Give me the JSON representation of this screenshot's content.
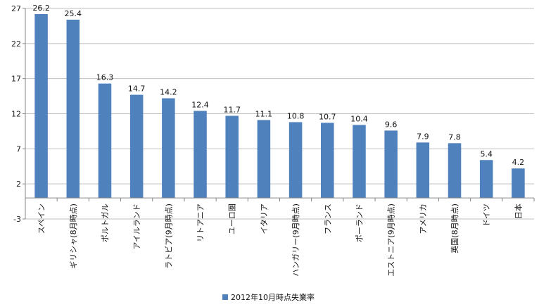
{
  "chart_data": {
    "type": "bar",
    "categories": [
      "スペイン",
      "ギリシャ(8月時点)",
      "ポルトガル",
      "アイルランド",
      "ラトビア(9月時点)",
      "リトアニア",
      "ユーロ圏",
      "イタリア",
      "ハンガリー(9月時点)",
      "フランス",
      "ポーランド",
      "エストニア(9月時点)",
      "アメリカ",
      "英国(8月時点)",
      "ドイツ",
      "日本"
    ],
    "series": [
      {
        "name": "2012年10月時点失業率",
        "values": [
          26.2,
          25.4,
          16.3,
          14.7,
          14.2,
          12.4,
          11.7,
          11.1,
          10.8,
          10.7,
          10.4,
          9.6,
          7.9,
          7.8,
          5.4,
          4.2
        ],
        "labels": [
          "26.2",
          "25.4",
          "16.3",
          "14.7",
          "14.2",
          "12.4",
          "11.7",
          "11.1",
          "10.8",
          "10.7",
          "10.4",
          "9.6",
          "7.9",
          "7.8",
          "5.4",
          "4.2"
        ]
      }
    ],
    "yticks": [
      -3,
      2,
      7,
      12,
      17,
      22,
      27
    ],
    "ytick_labels": [
      "-3",
      "2",
      "7",
      "12",
      "17",
      "22",
      "27"
    ],
    "ylim": [
      -3,
      27
    ],
    "baseline": 0,
    "grid": true,
    "legend_position": "bottom",
    "bar_color": "#4f81bd",
    "grid_color": "#bfbfbf",
    "axis_color": "#868686"
  }
}
